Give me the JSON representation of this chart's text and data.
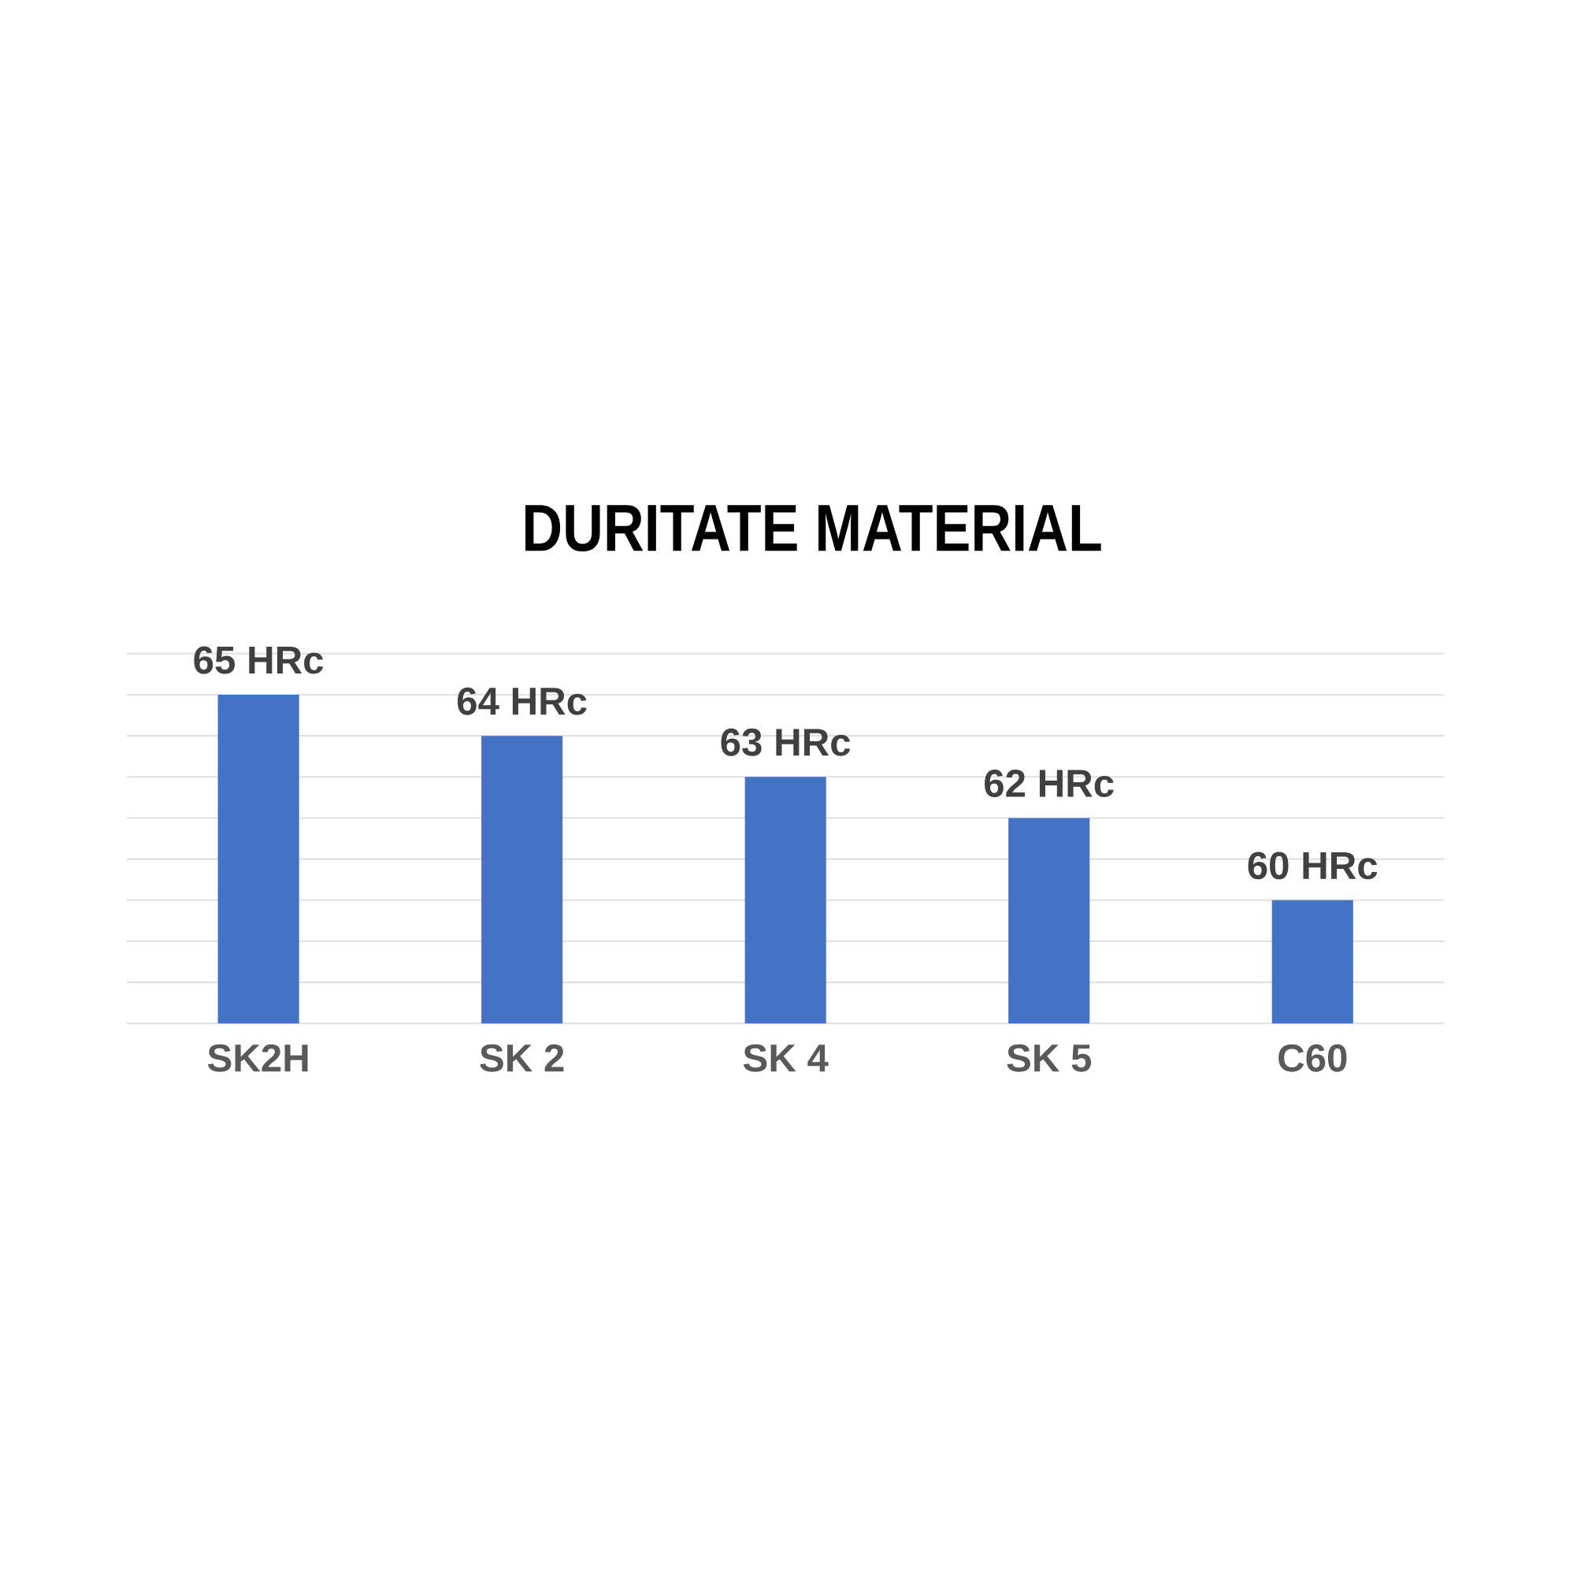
{
  "chart_data": {
    "type": "bar",
    "title": "DURITATE MATERIAL",
    "categories": [
      "SK2H",
      "SK 2",
      "SK 4",
      "SK 5",
      "C60"
    ],
    "values": [
      65,
      64,
      63,
      62,
      60
    ],
    "value_labels": [
      "65 HRc",
      "64 HRc",
      "63 HRc",
      "62 HRc",
      "60 HRc"
    ],
    "color": "#4472c4",
    "ylim": [
      57,
      66
    ],
    "yticks": [
      {
        "value": 57,
        "label": null
      },
      {
        "value": 58,
        "label": null
      },
      {
        "value": 59,
        "label": null
      },
      {
        "value": 60,
        "label": null
      },
      {
        "value": 61,
        "label": null
      },
      {
        "value": 62,
        "label": null
      },
      {
        "value": 63,
        "label": null
      },
      {
        "value": 64,
        "label": null
      },
      {
        "value": 65,
        "label": null
      },
      {
        "value": 66,
        "label": null
      }
    ],
    "grid": "y",
    "tick_labels": "x"
  }
}
